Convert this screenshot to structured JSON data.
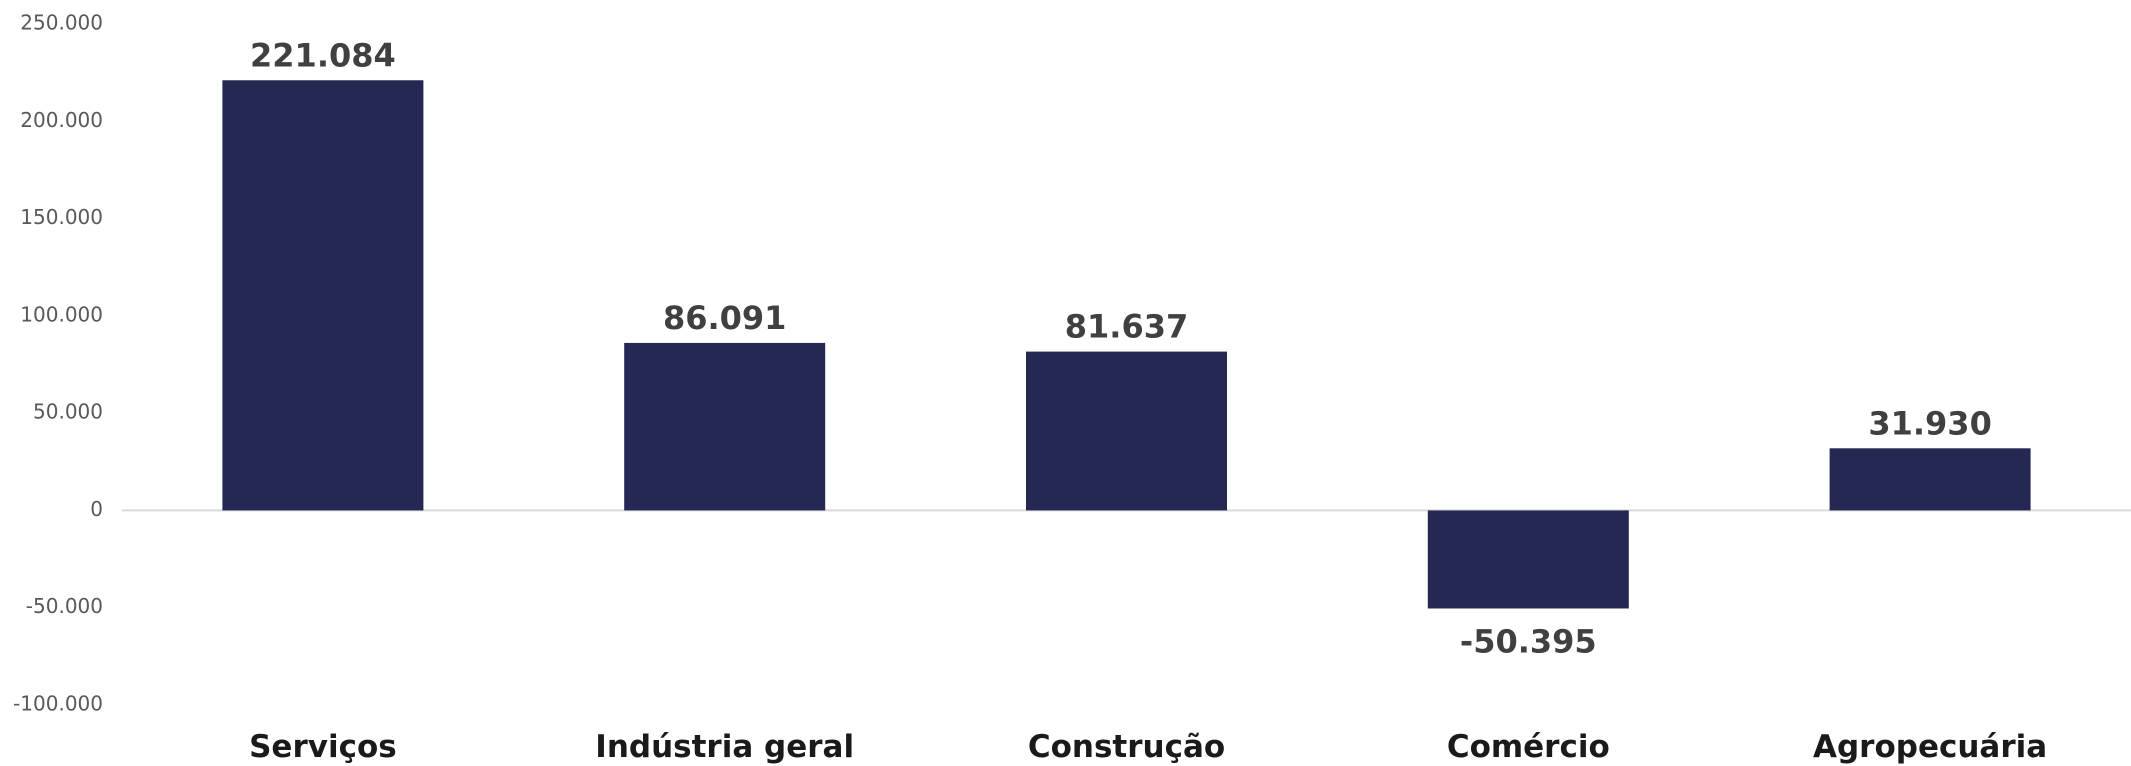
{
  "chart_data": {
    "type": "bar",
    "categories": [
      "Serviços",
      "Indústria geral",
      "Construção",
      "Comércio",
      "Agropecuária"
    ],
    "values": [
      221084,
      86091,
      81637,
      -50395,
      31930
    ],
    "data_labels": [
      "221.084",
      "86.091",
      "81.637",
      "-50.395",
      "31.930"
    ],
    "ylim": [
      -100000,
      250000
    ],
    "yticks": [
      250000,
      200000,
      150000,
      100000,
      50000,
      0,
      -50000,
      -100000
    ],
    "ytick_labels": [
      "250.000",
      "200.000",
      "150.000",
      "100.000",
      "50.000",
      "0",
      "-50.000",
      "-100.000"
    ],
    "grid": false,
    "legend": "none",
    "title": "",
    "xlabel": "",
    "ylabel": "",
    "bar_color": "#262854",
    "baseline_color": "#d9d9d9"
  }
}
